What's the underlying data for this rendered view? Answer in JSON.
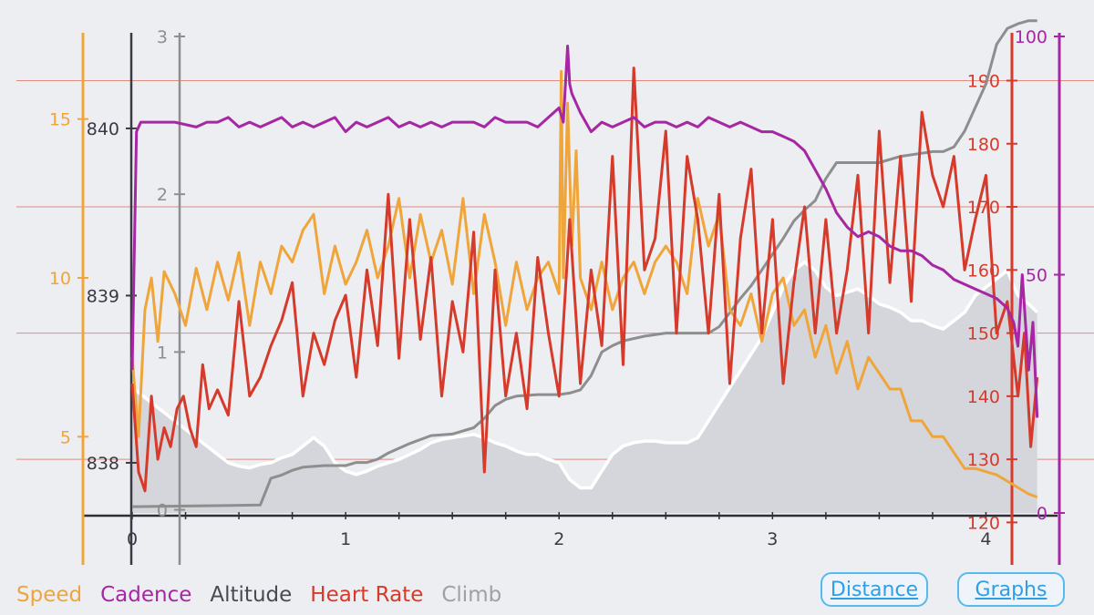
{
  "chart_data": {
    "type": "line",
    "xlabel": "Distance",
    "xlim": [
      0,
      4.25
    ],
    "x_ticks": [
      "0",
      "1",
      "2",
      "3",
      "4"
    ],
    "axes": {
      "speed": {
        "label": "Speed",
        "color": "#f0a53a",
        "ylim": [
          2.6,
          17.6
        ],
        "ticks": [
          "5",
          "10",
          "15"
        ],
        "tick_values": [
          5,
          10,
          15
        ]
      },
      "altitude": {
        "label": "Altitude",
        "color": "#3a3a44",
        "ylim": [
          837.7,
          840.55
        ],
        "ticks": [
          "838",
          "839",
          "840"
        ],
        "tick_values": [
          838,
          839,
          840
        ]
      },
      "climb": {
        "label": "Climb",
        "color": "#8e8e8e",
        "ylim": [
          -0.02,
          3.0
        ],
        "ticks": [
          "0",
          "1",
          "2",
          "3"
        ],
        "tick_values": [
          0,
          1,
          2,
          3
        ]
      },
      "heart_rate": {
        "label": "Heart Rate",
        "color": "#d63a2a",
        "ylim": [
          121.5,
          197
        ],
        "ticks": [
          "120",
          "130",
          "140",
          "150",
          "160",
          "170",
          "180",
          "190"
        ],
        "tick_values": [
          120,
          130,
          140,
          150,
          160,
          170,
          180,
          190
        ]
      },
      "cadence": {
        "label": "Cadence",
        "color": "#a626a4",
        "ylim": [
          0,
          100
        ],
        "ticks": [
          "0",
          "50",
          "100"
        ],
        "tick_values": [
          0,
          50,
          100
        ]
      }
    },
    "series": [
      {
        "name": "Altitude",
        "axis": "altitude",
        "style": "area",
        "color": "#ffffff",
        "x": [
          0,
          0.05,
          0.1,
          0.15,
          0.2,
          0.25,
          0.3,
          0.35,
          0.4,
          0.45,
          0.5,
          0.55,
          0.6,
          0.65,
          0.7,
          0.75,
          0.8,
          0.85,
          0.9,
          0.95,
          1.0,
          1.05,
          1.1,
          1.15,
          1.2,
          1.25,
          1.3,
          1.35,
          1.4,
          1.45,
          1.5,
          1.55,
          1.6,
          1.65,
          1.7,
          1.75,
          1.8,
          1.85,
          1.9,
          1.95,
          2.0,
          2.05,
          2.1,
          2.15,
          2.2,
          2.25,
          2.3,
          2.35,
          2.4,
          2.45,
          2.5,
          2.55,
          2.6,
          2.65,
          2.7,
          2.75,
          2.8,
          2.85,
          2.9,
          2.95,
          3.0,
          3.05,
          3.1,
          3.15,
          3.2,
          3.25,
          3.3,
          3.35,
          3.4,
          3.45,
          3.5,
          3.55,
          3.6,
          3.65,
          3.7,
          3.75,
          3.8,
          3.85,
          3.9,
          3.95,
          4.0,
          4.05,
          4.1,
          4.15,
          4.2,
          4.24
        ],
        "values": [
          838.45,
          838.4,
          838.35,
          838.3,
          838.25,
          838.2,
          838.15,
          838.1,
          838.05,
          838.0,
          837.98,
          837.97,
          837.99,
          838.0,
          838.03,
          838.05,
          838.1,
          838.15,
          838.1,
          838.0,
          837.95,
          837.93,
          837.95,
          837.98,
          838.0,
          838.02,
          838.05,
          838.08,
          838.12,
          838.14,
          838.15,
          838.16,
          838.17,
          838.15,
          838.12,
          838.1,
          838.07,
          838.05,
          838.05,
          838.02,
          838.0,
          837.9,
          837.85,
          837.85,
          837.95,
          838.05,
          838.1,
          838.12,
          838.13,
          838.13,
          838.12,
          838.12,
          838.12,
          838.15,
          838.25,
          838.35,
          838.45,
          838.55,
          838.65,
          838.75,
          838.9,
          839.05,
          839.15,
          839.2,
          839.15,
          839.05,
          839.0,
          839.02,
          839.04,
          839.0,
          838.95,
          838.93,
          838.9,
          838.85,
          838.85,
          838.82,
          838.8,
          838.85,
          838.9,
          839.0,
          839.05,
          839.1,
          839.15,
          839.0,
          838.95,
          838.9
        ]
      },
      {
        "name": "Climb",
        "axis": "climb",
        "style": "line",
        "color": "#8e8e8e",
        "x": [
          0,
          0.6,
          0.65,
          0.7,
          0.75,
          0.8,
          0.9,
          1.0,
          1.05,
          1.1,
          1.15,
          1.2,
          1.3,
          1.4,
          1.5,
          1.55,
          1.6,
          1.65,
          1.7,
          1.75,
          1.8,
          1.9,
          2.0,
          2.05,
          2.1,
          2.15,
          2.2,
          2.25,
          2.3,
          2.4,
          2.5,
          2.6,
          2.7,
          2.75,
          2.8,
          2.85,
          2.9,
          2.95,
          3.0,
          3.05,
          3.1,
          3.15,
          3.2,
          3.25,
          3.3,
          3.35,
          3.4,
          3.5,
          3.6,
          3.7,
          3.75,
          3.8,
          3.85,
          3.9,
          3.95,
          4.0,
          4.05,
          4.1,
          4.15,
          4.2,
          4.24
        ],
        "values": [
          0.02,
          0.03,
          0.2,
          0.22,
          0.25,
          0.27,
          0.28,
          0.28,
          0.3,
          0.3,
          0.32,
          0.36,
          0.42,
          0.47,
          0.48,
          0.5,
          0.52,
          0.58,
          0.66,
          0.7,
          0.72,
          0.73,
          0.73,
          0.74,
          0.76,
          0.85,
          1.0,
          1.04,
          1.07,
          1.1,
          1.12,
          1.12,
          1.12,
          1.16,
          1.25,
          1.34,
          1.42,
          1.52,
          1.62,
          1.72,
          1.83,
          1.9,
          1.96,
          2.1,
          2.2,
          2.2,
          2.2,
          2.2,
          2.24,
          2.26,
          2.27,
          2.27,
          2.3,
          2.4,
          2.55,
          2.7,
          2.95,
          3.05,
          3.08,
          3.1,
          3.1
        ]
      },
      {
        "name": "Speed",
        "axis": "speed",
        "style": "line",
        "color": "#f0a53a",
        "x": [
          0,
          0.03,
          0.06,
          0.09,
          0.12,
          0.15,
          0.2,
          0.25,
          0.3,
          0.35,
          0.4,
          0.45,
          0.5,
          0.55,
          0.6,
          0.65,
          0.7,
          0.75,
          0.8,
          0.85,
          0.9,
          0.95,
          1.0,
          1.05,
          1.1,
          1.15,
          1.2,
          1.25,
          1.3,
          1.35,
          1.4,
          1.45,
          1.5,
          1.55,
          1.6,
          1.65,
          1.7,
          1.75,
          1.8,
          1.85,
          1.9,
          1.95,
          2.0,
          2.01,
          2.02,
          2.04,
          2.06,
          2.08,
          2.1,
          2.15,
          2.2,
          2.25,
          2.3,
          2.35,
          2.4,
          2.45,
          2.5,
          2.55,
          2.6,
          2.65,
          2.7,
          2.75,
          2.8,
          2.85,
          2.9,
          2.95,
          3.0,
          3.05,
          3.1,
          3.15,
          3.2,
          3.25,
          3.3,
          3.35,
          3.4,
          3.45,
          3.5,
          3.55,
          3.6,
          3.65,
          3.7,
          3.75,
          3.8,
          3.85,
          3.9,
          3.95,
          4.0,
          4.05,
          4.1,
          4.15,
          4.2,
          4.24
        ],
        "values": [
          7.5,
          5.0,
          9.0,
          10.0,
          8.0,
          10.2,
          9.5,
          8.5,
          10.3,
          9.0,
          10.5,
          9.3,
          10.8,
          8.5,
          10.5,
          9.5,
          11.0,
          10.5,
          11.5,
          12.0,
          9.5,
          11.0,
          9.8,
          10.5,
          11.5,
          10.0,
          11.0,
          12.5,
          10.0,
          12.0,
          10.5,
          11.5,
          9.8,
          12.5,
          9.5,
          12.0,
          10.5,
          8.5,
          10.5,
          9.0,
          10.0,
          10.5,
          9.5,
          16.5,
          10.0,
          15.5,
          11.0,
          14.0,
          10.0,
          9.0,
          10.5,
          9.0,
          10.0,
          10.5,
          9.5,
          10.5,
          11.0,
          10.5,
          9.5,
          12.5,
          11.0,
          12.0,
          9.0,
          8.5,
          9.5,
          8.0,
          9.5,
          10.0,
          8.5,
          9.0,
          7.5,
          8.5,
          7.0,
          8.0,
          6.5,
          7.5,
          7.0,
          6.5,
          6.5,
          5.5,
          5.5,
          5.0,
          5.0,
          4.5,
          4.0,
          4.0,
          3.9,
          3.8,
          3.6,
          3.4,
          3.2,
          3.1
        ]
      },
      {
        "name": "Heart Rate",
        "axis": "heart_rate",
        "style": "line",
        "color": "#d63a2a",
        "x": [
          0,
          0.03,
          0.06,
          0.09,
          0.12,
          0.15,
          0.18,
          0.21,
          0.24,
          0.27,
          0.3,
          0.33,
          0.36,
          0.4,
          0.45,
          0.5,
          0.55,
          0.6,
          0.65,
          0.7,
          0.75,
          0.8,
          0.85,
          0.9,
          0.95,
          1.0,
          1.05,
          1.1,
          1.15,
          1.2,
          1.25,
          1.3,
          1.35,
          1.4,
          1.45,
          1.5,
          1.55,
          1.6,
          1.65,
          1.7,
          1.75,
          1.8,
          1.85,
          1.9,
          1.95,
          2.0,
          2.05,
          2.1,
          2.15,
          2.2,
          2.25,
          2.3,
          2.35,
          2.4,
          2.45,
          2.5,
          2.55,
          2.6,
          2.65,
          2.7,
          2.75,
          2.8,
          2.85,
          2.9,
          2.95,
          3.0,
          3.05,
          3.1,
          3.15,
          3.2,
          3.25,
          3.3,
          3.35,
          3.4,
          3.45,
          3.5,
          3.55,
          3.6,
          3.65,
          3.7,
          3.75,
          3.8,
          3.85,
          3.9,
          3.95,
          4.0,
          4.05,
          4.1,
          4.15,
          4.18,
          4.21,
          4.24
        ],
        "values": [
          142,
          128,
          125,
          140,
          130,
          135,
          132,
          138,
          140,
          135,
          132,
          145,
          138,
          141,
          137,
          155,
          140,
          143,
          148,
          152,
          158,
          140,
          150,
          145,
          152,
          156,
          143,
          160,
          148,
          172,
          146,
          168,
          149,
          162,
          140,
          155,
          147,
          166,
          128,
          160,
          140,
          150,
          138,
          162,
          150,
          140,
          168,
          142,
          160,
          148,
          178,
          145,
          192,
          160,
          165,
          182,
          150,
          178,
          168,
          150,
          172,
          142,
          165,
          176,
          150,
          168,
          142,
          158,
          170,
          150,
          168,
          150,
          160,
          175,
          150,
          182,
          158,
          178,
          155,
          185,
          175,
          170,
          178,
          160,
          168,
          175,
          150,
          155,
          140,
          150,
          132,
          143
        ]
      },
      {
        "name": "Cadence",
        "axis": "cadence",
        "style": "line",
        "color": "#a626a4",
        "x": [
          0,
          0.02,
          0.04,
          0.06,
          0.1,
          0.2,
          0.3,
          0.35,
          0.4,
          0.45,
          0.5,
          0.55,
          0.6,
          0.65,
          0.7,
          0.75,
          0.8,
          0.85,
          0.9,
          0.95,
          1.0,
          1.05,
          1.1,
          1.15,
          1.2,
          1.25,
          1.3,
          1.35,
          1.4,
          1.45,
          1.5,
          1.55,
          1.6,
          1.65,
          1.7,
          1.75,
          1.8,
          1.85,
          1.9,
          1.95,
          2.0,
          2.02,
          2.04,
          2.05,
          2.06,
          2.08,
          2.1,
          2.15,
          2.2,
          2.25,
          2.3,
          2.35,
          2.4,
          2.45,
          2.5,
          2.55,
          2.6,
          2.65,
          2.7,
          2.75,
          2.8,
          2.85,
          2.9,
          2.95,
          3.0,
          3.05,
          3.1,
          3.15,
          3.2,
          3.25,
          3.3,
          3.35,
          3.4,
          3.45,
          3.5,
          3.55,
          3.6,
          3.65,
          3.7,
          3.75,
          3.8,
          3.85,
          3.9,
          3.95,
          4.0,
          4.05,
          4.1,
          4.13,
          4.15,
          4.17,
          4.2,
          4.22,
          4.24
        ],
        "values": [
          30,
          80,
          82,
          82,
          82,
          82,
          81,
          82,
          82,
          83,
          81,
          82,
          81,
          82,
          83,
          81,
          82,
          81,
          82,
          83,
          80,
          82,
          81,
          82,
          83,
          81,
          82,
          81,
          82,
          81,
          82,
          82,
          82,
          81,
          83,
          82,
          82,
          82,
          81,
          83,
          85,
          82,
          98,
          90,
          88,
          86,
          84,
          80,
          82,
          81,
          82,
          83,
          81,
          82,
          82,
          81,
          82,
          81,
          83,
          82,
          81,
          82,
          81,
          80,
          80,
          79,
          78,
          76,
          72,
          68,
          63,
          60,
          58,
          59,
          58,
          56,
          55,
          55,
          54,
          52,
          51,
          49,
          48,
          47,
          46,
          45,
          43,
          40,
          35,
          50,
          30,
          40,
          20
        ]
      }
    ]
  },
  "legend": {
    "speed": "Speed",
    "cadence": "Cadence",
    "altitude": "Altitude",
    "heart_rate": "Heart Rate",
    "climb": "Climb"
  },
  "colors": {
    "speed": "#f0a53a",
    "cadence": "#a626a4",
    "altitude": "#3a3a44",
    "heart_rate": "#d63a2a",
    "climb": "#8e8e8e",
    "grid": "#e08a80",
    "area": "#d4d6dc"
  },
  "buttons": {
    "distance": "Distance",
    "graphs": "Graphs"
  }
}
